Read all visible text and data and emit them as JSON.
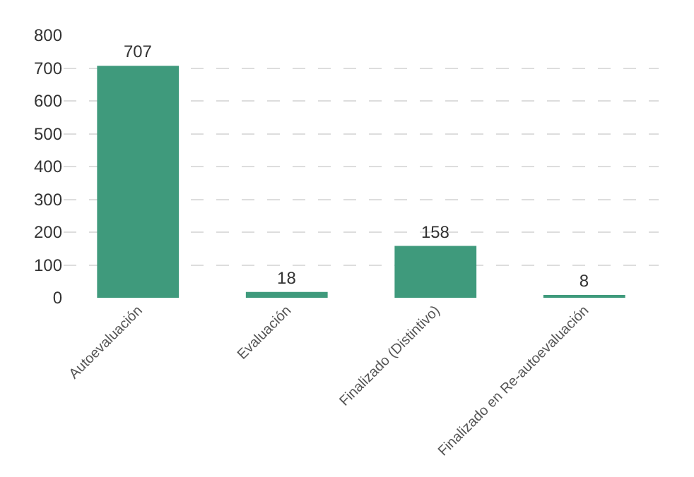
{
  "chart_data": {
    "type": "bar",
    "categories": [
      "Autoevaluación",
      "Evaluación",
      "Finalizado (Distintivo)",
      "Finalizado en Re-autoevaluación"
    ],
    "values": [
      707,
      18,
      158,
      8
    ],
    "color": "#3f9a7c",
    "ylim": [
      0,
      800
    ],
    "yticks": [
      0,
      100,
      200,
      300,
      400,
      500,
      600,
      700,
      800
    ],
    "grid": "y",
    "data_labels": true
  }
}
